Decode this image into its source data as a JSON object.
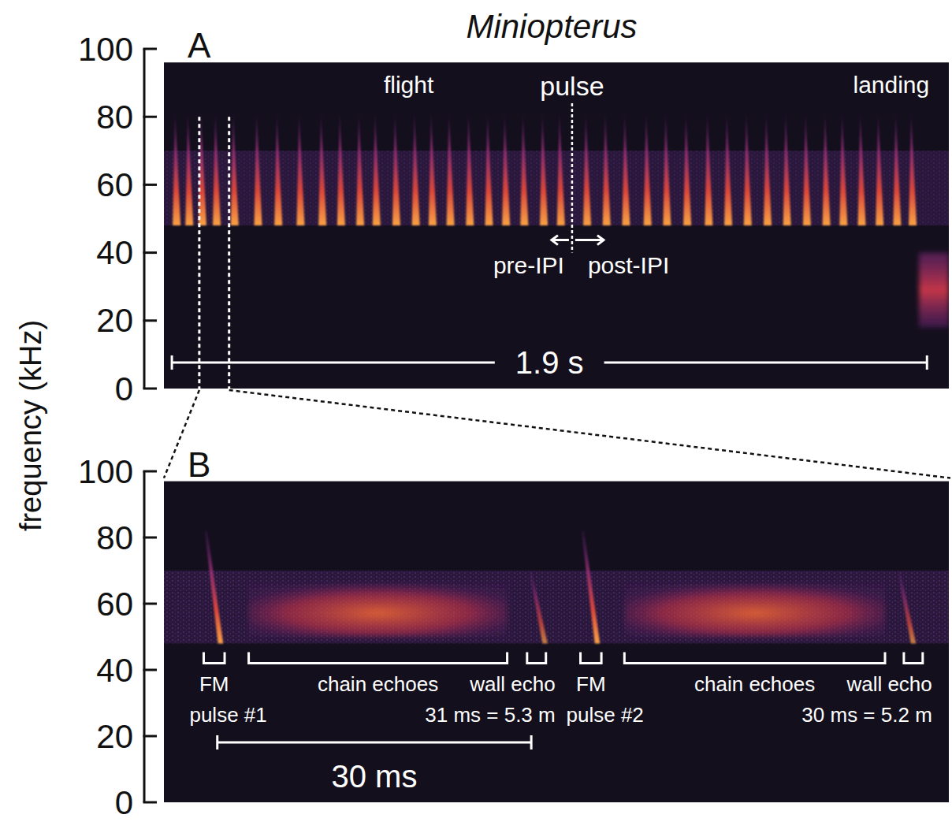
{
  "title": "Miniopterus",
  "y_label": "frequency (kHz)",
  "chart_data": [
    {
      "type": "spectrogram",
      "panel": "A",
      "ylim": [
        0,
        100
      ],
      "yticks": [
        0,
        20,
        40,
        60,
        80,
        100
      ],
      "tick_labels": "y",
      "xlim": [
        0,
        1.975
      ],
      "display_range": [
        0,
        96
      ],
      "echo_band": [
        48,
        70
      ],
      "pulses": {
        "t": [
          0.028,
          0.06,
          0.093,
          0.129,
          0.174,
          0.233,
          0.284,
          0.34,
          0.395,
          0.442,
          0.49,
          0.531,
          0.581,
          0.63,
          0.672,
          0.717,
          0.766,
          0.814,
          0.857,
          0.903,
          0.952,
          0.995,
          1.061,
          1.11,
          1.159,
          1.213,
          1.262,
          1.313,
          1.367,
          1.416,
          1.465,
          1.515,
          1.564,
          1.614,
          1.663,
          1.706,
          1.752,
          1.797,
          1.841,
          1.88
        ],
        "f_range": [
          48,
          82
        ]
      },
      "landing_call": {
        "t_start": 1.9,
        "f_range": [
          18,
          40
        ]
      },
      "labels": [
        {
          "text": "flight",
          "x": 0.616,
          "y": 89.5
        },
        {
          "text": "landing",
          "x": 1.83,
          "y": 89.5
        }
      ],
      "pulse_marker": {
        "text": "pulse",
        "t": 1.027,
        "f_range": [
          40,
          84
        ],
        "ipi_labels": [
          "pre-IPI",
          "post-IPI"
        ]
      },
      "zoom": [
        0.089,
        0.164
      ],
      "scale_bar": {
        "start": 0.02,
        "length": 1.9,
        "label": "1.9 s"
      }
    },
    {
      "type": "spectrogram",
      "panel": "B",
      "ylim": [
        0,
        100
      ],
      "yticks": [
        0,
        20,
        40,
        60,
        80,
        100
      ],
      "tick_labels": "y",
      "xlim": [
        0,
        75
      ],
      "display_range": [
        0,
        97
      ],
      "echo_band": [
        48,
        70
      ],
      "pulses": {
        "t": [
          4.0,
          40.0
        ],
        "f_range": [
          48,
          82
        ],
        "sweep": 1.4
      },
      "wall_echoes": {
        "t": [
          35.0,
          70.2
        ],
        "f_range": [
          48,
          70
        ]
      },
      "chain_echoes": {
        "f_range": [
          50,
          66
        ],
        "spans": [
          {
            "start": 8.1,
            "end": 32.8
          },
          {
            "start": 44.0,
            "end": 68.9
          }
        ]
      },
      "events": [
        {
          "lines": [
            "FM",
            "pulse #1"
          ],
          "start": 3.8,
          "end": 5.8
        },
        {
          "lines": [
            "chain echoes"
          ],
          "start": 8.1,
          "end": 32.8
        },
        {
          "lines": [
            "wall echo",
            "31 ms = 5.3 m"
          ],
          "start": 34.7,
          "end": 36.5
        },
        {
          "lines": [
            "FM",
            "pulse #2"
          ],
          "start": 39.8,
          "end": 41.8
        },
        {
          "lines": [
            "chain echoes"
          ],
          "start": 44.0,
          "end": 68.9
        },
        {
          "lines": [
            "wall echo",
            "30 ms = 5.2 m"
          ],
          "start": 70.7,
          "end": 72.5
        }
      ],
      "scale_bar": {
        "start": 5.1,
        "length": 30,
        "label": "30 ms"
      }
    }
  ]
}
